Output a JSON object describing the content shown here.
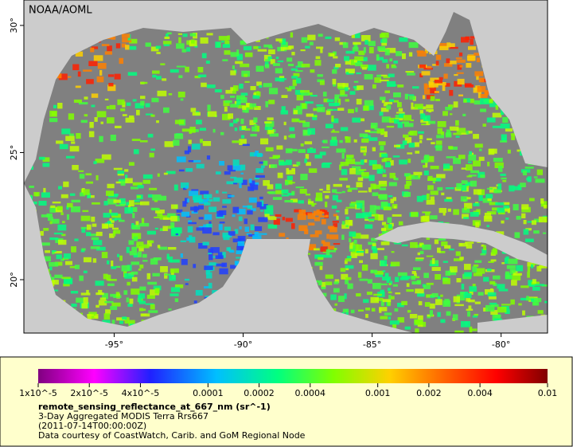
{
  "map": {
    "credit": "NOAA/AOML",
    "lon_range": [
      -98.5,
      -78.2
    ],
    "lat_range": [
      17.9,
      31.0
    ],
    "lon_ticks": [
      {
        "value": -95,
        "label": "-95°"
      },
      {
        "value": -90,
        "label": "-90°"
      },
      {
        "value": -85,
        "label": "-85°"
      },
      {
        "value": -80,
        "label": "-80°"
      }
    ],
    "lat_ticks": [
      {
        "value": 30,
        "label": "30°"
      },
      {
        "value": 25,
        "label": "25°"
      },
      {
        "value": 20,
        "label": "20°"
      }
    ]
  },
  "colorbar": {
    "scale": "log",
    "range": [
      1e-05,
      0.01
    ],
    "ticks": [
      {
        "value": 1e-05,
        "label": "1x10^-5"
      },
      {
        "value": 2e-05,
        "label": "2x10^-5"
      },
      {
        "value": 4e-05,
        "label": "4x10^-5"
      },
      0.0001,
      0.0002,
      0.0004,
      0.001,
      0.002,
      0.004,
      0.01
    ]
  },
  "legend": {
    "variable": "remote_sensing_reflectance_at_667_nm (sr^-1)",
    "description": "3-Day Aggregated MODIS Terra Rrs667",
    "time": "(2011-07-14T00:00:00Z)",
    "credit": "Data courtesy of CoastWatch, Carib. and GoM Regional Node"
  }
}
